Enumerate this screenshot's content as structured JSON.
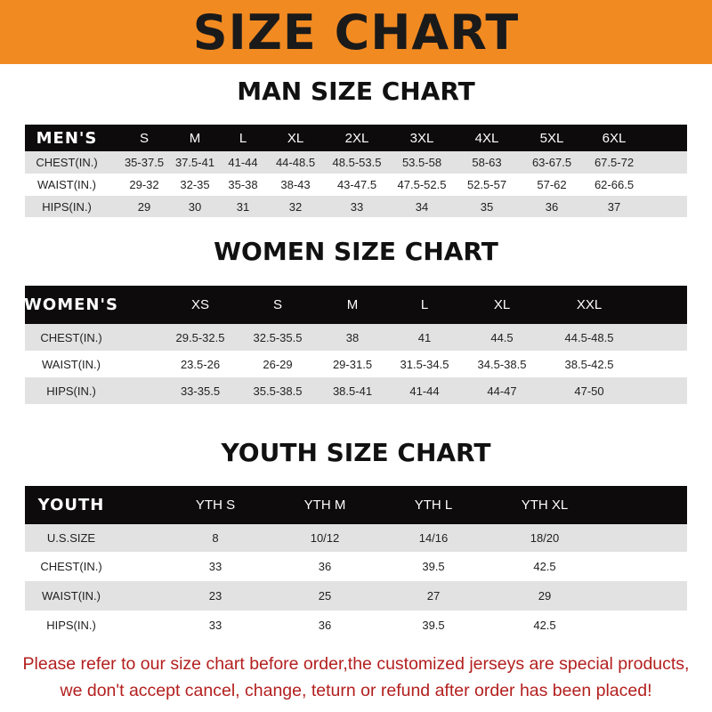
{
  "banner": {
    "title": "SIZE CHART",
    "color": "#f28a22"
  },
  "men": {
    "title": "MAN SIZE CHART",
    "header": [
      "MEN'S",
      "S",
      "M",
      "L",
      "XL",
      "2XL",
      "3XL",
      "4XL",
      "5XL",
      "6XL"
    ],
    "rows": [
      [
        "CHEST(IN.)",
        "35-37.5",
        "37.5-41",
        "41-44",
        "44-48.5",
        "48.5-53.5",
        "53.5-58",
        "58-63",
        "63-67.5",
        "67.5-72"
      ],
      [
        "WAIST(IN.)",
        "29-32",
        "32-35",
        "35-38",
        "38-43",
        "43-47.5",
        "47.5-52.5",
        "52.5-57",
        "57-62",
        "62-66.5"
      ],
      [
        "HIPS(IN.)",
        "29",
        "30",
        "31",
        "32",
        "33",
        "34",
        "35",
        "36",
        "37"
      ]
    ]
  },
  "women": {
    "title": "WOMEN SIZE CHART",
    "header": [
      "WOMEN'S",
      "XS",
      "S",
      "M",
      "L",
      "XL",
      "XXL"
    ],
    "rows": [
      [
        "CHEST(IN.)",
        "29.5-32.5",
        "32.5-35.5",
        "38",
        "41",
        "44.5",
        "44.5-48.5"
      ],
      [
        "WAIST(IN.)",
        "23.5-26",
        "26-29",
        "29-31.5",
        "31.5-34.5",
        "34.5-38.5",
        "38.5-42.5"
      ],
      [
        "HIPS(IN.)",
        "33-35.5",
        "35.5-38.5",
        "38.5-41",
        "41-44",
        "44-47",
        "47-50"
      ]
    ]
  },
  "youth": {
    "title": "YOUTH SIZE CHART",
    "header": [
      "YOUTH",
      "YTH S",
      "YTH M",
      "YTH L",
      "YTH XL"
    ],
    "rows": [
      [
        "U.S.SIZE",
        "8",
        "10/12",
        "14/16",
        "18/20"
      ],
      [
        "CHEST(IN.)",
        "33",
        "36",
        "39.5",
        "42.5"
      ],
      [
        "WAIST(IN.)",
        "23",
        "25",
        "27",
        "29"
      ],
      [
        "HIPS(IN.)",
        "33",
        "36",
        "39.5",
        "42.5"
      ]
    ]
  },
  "footer": {
    "line1": "Please refer to our size chart before order,the customized jerseys are special products,",
    "line2": "we don't accept cancel, change, teturn or refund after order has been placed!",
    "color": "#b3201f"
  }
}
